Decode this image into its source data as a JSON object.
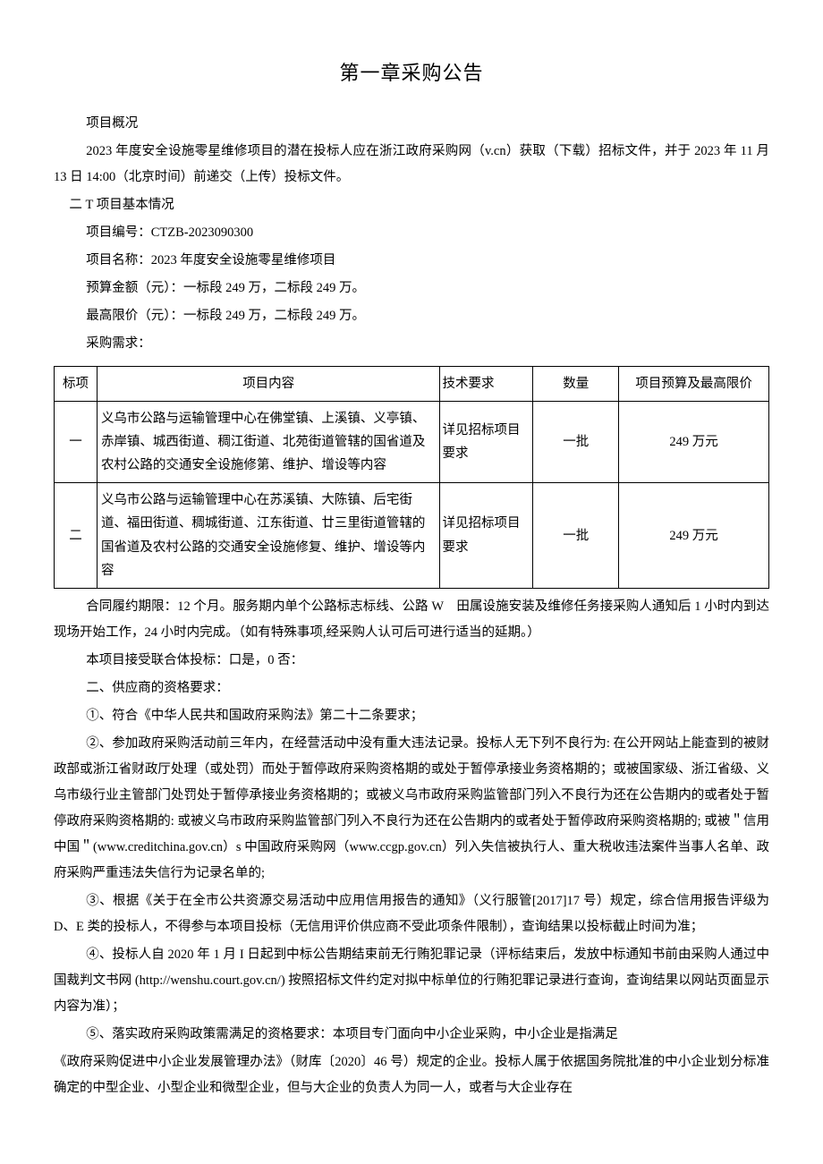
{
  "title": "第一章采购公告",
  "overview_label": "项目概况",
  "overview_text": "2023 年度安全设施零星维修项目的潜在投标人应在浙江政府采购网（v.cn）获取（下载）招标文件，并于 2023 年 11 月 13 日 14:00（北京时间）前递交（上传）投标文件。",
  "section1_heading": "二 T 项目基本情况",
  "project_no_label": "项目编号：",
  "project_no": "CTZB-2023090300",
  "project_name_label": "项目名称：",
  "project_name": "2023 年度安全设施零星维修项目",
  "budget_label": "预算金额（元）：",
  "budget_value": "一标段 249 万，二标段 249 万。",
  "limit_label": "最高限价（元）：",
  "limit_value": "一标段 249 万，二标段 249 万。",
  "needs_label": "采购需求：",
  "table": {
    "headers": {
      "bid": "标项",
      "content": "项目内容",
      "tech": "技术要求",
      "qty": "数量",
      "budget": "项目预算及最高限价"
    },
    "rows": [
      {
        "bid": "一",
        "content": "义乌市公路与运输管理中心在佛堂镇、上溪镇、义亭镇、赤岸镇、城西街道、稠江街道、北苑街道管辖的国省道及农村公路的交通安全设施修第、维护、增设等内容",
        "tech": "详见招标项目要求",
        "qty": "一批",
        "budget": "249 万元"
      },
      {
        "bid": "二",
        "content": "义乌市公路与运输管理中心在苏溪镇、大陈镇、后宅街道、福田街道、稠城街道、江东街道、廿三里街道管辖的国省道及农村公路的交通安全设施修复、维护、增设等内容",
        "tech": "详见招标项目要求",
        "qty": "一批",
        "budget": "249 万元"
      }
    ]
  },
  "contract_period": "合同履约期限：12 个月。服务期内单个公路标志标线、公路 W　田属设施安装及维修任务接采购人通知后 1 小时内到达现场开始工作，24 小时内完成。（如有特殊事项,经采购人认可后可进行适当的延期。）",
  "joint_bid": "本项目接受联合体投标：口是，0 否：",
  "section2_heading": "二、供应商的资格要求：",
  "req1": "①、符合《中华人民共和国政府采购法》第二十二条要求；",
  "req2": "②、参加政府采购活动前三年内，在经营活动中没有重大违法记录。投标人无下列不良行为: 在公开网站上能查到的被财政部或浙江省财政厅处理（或处罚）而处于暂停政府采购资格期的或处于暂停承接业务资格期的；或被国家级、浙江省级、义乌市级行业主管部门处罚处于暂停承接业务资格期的；或被义乌市政府采购监管部门列入不良行为还在公告期内的或者处于暂停政府采购资格期的: 或被义乌市政府采购监管部门列入不良行为还在公告期内的或者处于暂停政府采购资格期的; 或被＂信用中国＂(www.creditchina.gov.cn）s 中国政府采购网（www.ccgp.gov.cn）列入失信被执行人、重大税收违法案件当事人名单、政府采购严重违法失信行为记录名单的;",
  "req3": "③、根据《关于在全市公共资源交易活动中应用信用报告的通知》（义行服管[2017]17 号）规定，综合信用报告评级为 D、E 类的投标人，不得参与本项目投标（无信用评价供应商不受此项条件限制），查询结果以投标截止时间为准；",
  "req4": "④、投标人自 2020 年 1 月 I 日起到中标公告期结束前无行贿犯罪记录（评标结束后，发放中标通知书前由采购人通过中国裁判文书网 (http://wenshu.court.gov.cn/) 按照招标文件约定对拟中标单位的行贿犯罪记录进行查询，查询结果以网站页面显示内容为准）；",
  "req5": "⑤、落实政府采购政策需满足的资格要求：本项目专门面向中小企业采购，中小企业是指满足",
  "req5_cont": "《政府采购促进中小企业发展管理办法》（财库〔2020〕46 号）规定的企业。投标人属于依据国务院批准的中小企业划分标准确定的中型企业、小型企业和微型企业，但与大企业的负责人为同一人，或者与大企业存在"
}
